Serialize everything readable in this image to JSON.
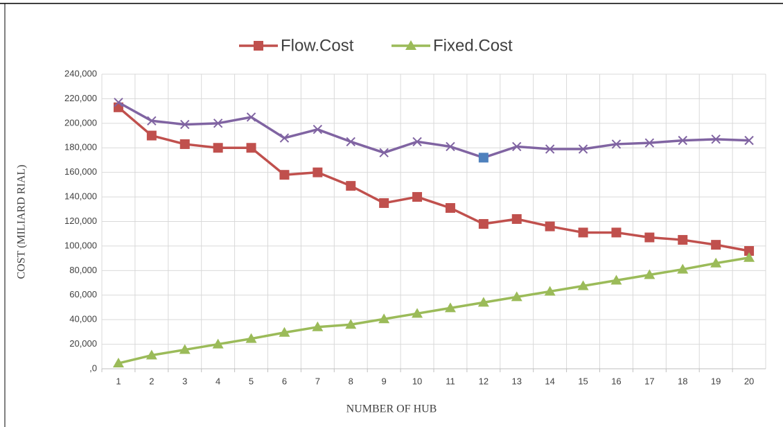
{
  "chart_data": {
    "type": "line",
    "xlabel": "NUMBER OF HUB",
    "ylabel": "COST (MILIARD RIAL)",
    "categories": [
      "1",
      "2",
      "3",
      "4",
      "5",
      "6",
      "7",
      "8",
      "9",
      "10",
      "11",
      "12",
      "13",
      "14",
      "15",
      "16",
      "17",
      "18",
      "19",
      "20"
    ],
    "series": [
      {
        "name": "Flow.Cost",
        "color": "#c0504d",
        "marker": "square",
        "values": [
          213000,
          190000,
          183000,
          180000,
          180000,
          158000,
          160000,
          149000,
          135000,
          140000,
          131000,
          118000,
          122000,
          116000,
          111000,
          111000,
          107000,
          105000,
          101000,
          96000
        ]
      },
      {
        "name": "Fixed.Cost",
        "color": "#9bbb59",
        "marker": "triangle",
        "values": [
          4500,
          11000,
          15500,
          20000,
          24500,
          29500,
          34000,
          36000,
          40500,
          45000,
          49500,
          54000,
          58500,
          63000,
          67500,
          72000,
          76500,
          81000,
          86000,
          90500
        ]
      },
      {
        "color": "#8064a2",
        "marker": "x",
        "highlight_index": 11,
        "highlight_color": "#4f81bd",
        "values": [
          217000,
          202000,
          199000,
          200000,
          205000,
          188000,
          195000,
          185000,
          176000,
          185000,
          181000,
          172000,
          181000,
          179000,
          179000,
          183000,
          184000,
          186000,
          187000,
          186000
        ]
      }
    ],
    "ylim": [
      0,
      240000
    ],
    "yticks": [
      {
        "value": 0,
        "label": ",0"
      },
      {
        "value": 20000,
        "label": "20,000"
      },
      {
        "value": 40000,
        "label": "40,000"
      },
      {
        "value": 60000,
        "label": "60,000"
      },
      {
        "value": 80000,
        "label": "80,000"
      },
      {
        "value": 100000,
        "label": "100,000"
      },
      {
        "value": 120000,
        "label": "120,000"
      },
      {
        "value": 140000,
        "label": "140,000"
      },
      {
        "value": 160000,
        "label": "160,000"
      },
      {
        "value": 180000,
        "label": "180,000"
      },
      {
        "value": 200000,
        "label": "200,000"
      },
      {
        "value": 220000,
        "label": "220,000"
      },
      {
        "value": 240000,
        "label": "240,000"
      }
    ],
    "grid": true,
    "legend": "top"
  }
}
